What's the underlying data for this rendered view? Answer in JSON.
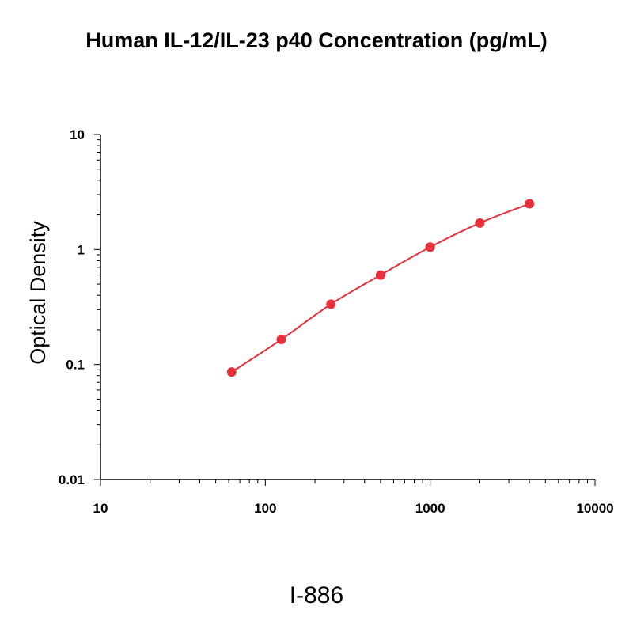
{
  "chart_data": {
    "type": "line",
    "title": "Human IL-12/IL-23 p40 Concentration (pg/mL)",
    "xlabel": "",
    "ylabel": "Optical Density",
    "x_scale": "log",
    "y_scale": "log",
    "xlim": [
      10,
      10000
    ],
    "ylim": [
      0.01,
      10
    ],
    "x_ticks": [
      "10",
      "100",
      "1000",
      "10000"
    ],
    "y_ticks": [
      "0.01",
      "0.1",
      "1",
      "10"
    ],
    "grid": false,
    "series": [
      {
        "color": "#e8303a",
        "x": [
          62.5,
          125,
          250,
          500,
          1000,
          2000,
          4000
        ],
        "y": [
          0.086,
          0.165,
          0.335,
          0.6,
          1.05,
          1.7,
          2.5
        ]
      }
    ]
  },
  "caption": "I-886"
}
